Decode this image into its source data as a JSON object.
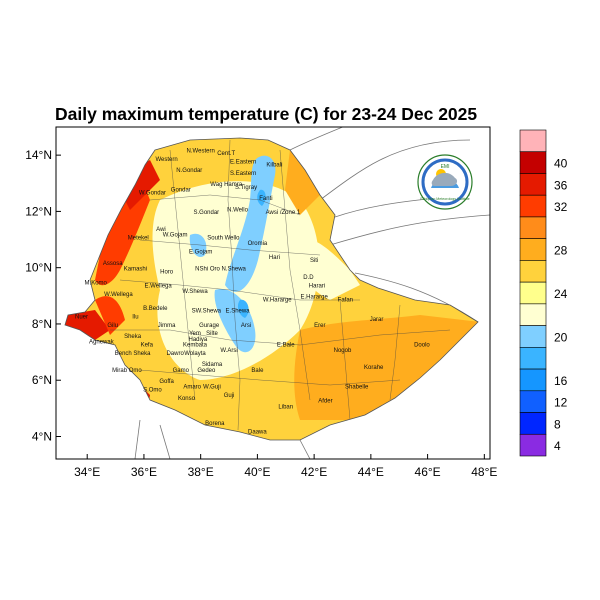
{
  "title": "Daily maximum temperature (C) for 23-24 Dec 2025",
  "map": {
    "x_ticks": [
      {
        "lon": 34,
        "label": "34°E"
      },
      {
        "lon": 36,
        "label": "36°E"
      },
      {
        "lon": 38,
        "label": "38°E"
      },
      {
        "lon": 40,
        "label": "40°E"
      },
      {
        "lon": 42,
        "label": "42°E"
      },
      {
        "lon": 44,
        "label": "44°E"
      },
      {
        "lon": 46,
        "label": "46°E"
      },
      {
        "lon": 48,
        "label": "48°E"
      }
    ],
    "y_ticks": [
      {
        "lat": 4,
        "label": "4°N"
      },
      {
        "lat": 6,
        "label": "6°N"
      },
      {
        "lat": 8,
        "label": "8°N"
      },
      {
        "lat": 10,
        "label": "10°N"
      },
      {
        "lat": 12,
        "label": "12°N"
      },
      {
        "lat": 14,
        "label": "14°N"
      }
    ],
    "lon_range": [
      32.9,
      48.2
    ],
    "lat_range": [
      3.2,
      15.0
    ],
    "region_labels": [
      {
        "name": "N.Western",
        "lon": 38.0,
        "lat": 14.1
      },
      {
        "name": "Cent.T",
        "lon": 38.9,
        "lat": 14.0
      },
      {
        "name": "Western",
        "lon": 36.8,
        "lat": 13.8
      },
      {
        "name": "E.Eastern",
        "lon": 39.5,
        "lat": 13.7
      },
      {
        "name": "Kilbali",
        "lon": 40.6,
        "lat": 13.6
      },
      {
        "name": "N.Gondar",
        "lon": 37.6,
        "lat": 13.4
      },
      {
        "name": "S.Eastern",
        "lon": 39.5,
        "lat": 13.3
      },
      {
        "name": "Wag Hamra",
        "lon": 38.9,
        "lat": 12.9
      },
      {
        "name": "S.Tigray",
        "lon": 39.6,
        "lat": 12.8
      },
      {
        "name": "W.Gondar",
        "lon": 36.3,
        "lat": 12.6
      },
      {
        "name": "Gondar",
        "lon": 37.3,
        "lat": 12.7
      },
      {
        "name": "Fanti",
        "lon": 40.3,
        "lat": 12.4
      },
      {
        "name": "S.Gondar",
        "lon": 38.2,
        "lat": 11.9
      },
      {
        "name": "N.Wello",
        "lon": 39.3,
        "lat": 12.0
      },
      {
        "name": "Awsi /Zone 1",
        "lon": 40.9,
        "lat": 11.9
      },
      {
        "name": "Metekel",
        "lon": 35.8,
        "lat": 11.0
      },
      {
        "name": "W.Gojam",
        "lon": 37.1,
        "lat": 11.1
      },
      {
        "name": "Awi",
        "lon": 36.6,
        "lat": 11.3
      },
      {
        "name": "South Wello",
        "lon": 38.8,
        "lat": 11.0
      },
      {
        "name": "E.Gojam",
        "lon": 38.0,
        "lat": 10.5
      },
      {
        "name": "Oromia",
        "lon": 40.0,
        "lat": 10.8
      },
      {
        "name": "Hari",
        "lon": 40.6,
        "lat": 10.3
      },
      {
        "name": "Siti",
        "lon": 42.0,
        "lat": 10.2
      },
      {
        "name": "Assosa",
        "lon": 34.9,
        "lat": 10.1
      },
      {
        "name": "Kamashi",
        "lon": 35.7,
        "lat": 9.9
      },
      {
        "name": "Horo",
        "lon": 36.8,
        "lat": 9.8
      },
      {
        "name": "NShi Oro N.Shewa",
        "lon": 38.7,
        "lat": 9.9
      },
      {
        "name": "D.D",
        "lon": 41.8,
        "lat": 9.6
      },
      {
        "name": "Harari",
        "lon": 42.1,
        "lat": 9.3
      },
      {
        "name": "M.Komo",
        "lon": 34.3,
        "lat": 9.4
      },
      {
        "name": "E.Wellega",
        "lon": 36.5,
        "lat": 9.3
      },
      {
        "name": "W.Shewa",
        "lon": 37.8,
        "lat": 9.1
      },
      {
        "name": "W.Wellega",
        "lon": 35.1,
        "lat": 9.0
      },
      {
        "name": "W.Hararge",
        "lon": 40.7,
        "lat": 8.8
      },
      {
        "name": "E.Hararge",
        "lon": 42.0,
        "lat": 8.9
      },
      {
        "name": "Fafan",
        "lon": 43.1,
        "lat": 8.8
      },
      {
        "name": "B.Bedele",
        "lon": 36.4,
        "lat": 8.5
      },
      {
        "name": "SW.Shewa",
        "lon": 38.2,
        "lat": 8.4
      },
      {
        "name": "E.Shewa",
        "lon": 39.3,
        "lat": 8.4
      },
      {
        "name": "Jarar",
        "lon": 44.2,
        "lat": 8.1
      },
      {
        "name": "Ilu",
        "lon": 35.7,
        "lat": 8.2
      },
      {
        "name": "Jimma",
        "lon": 36.8,
        "lat": 7.9
      },
      {
        "name": "Gurage",
        "lon": 38.3,
        "lat": 7.9
      },
      {
        "name": "Arsi",
        "lon": 39.6,
        "lat": 7.9
      },
      {
        "name": "Erer",
        "lon": 42.2,
        "lat": 7.9
      },
      {
        "name": "Gilu",
        "lon": 34.9,
        "lat": 7.9
      },
      {
        "name": "Yem",
        "lon": 37.8,
        "lat": 7.6
      },
      {
        "name": "Silte",
        "lon": 38.4,
        "lat": 7.6
      },
      {
        "name": "Sheka",
        "lon": 35.6,
        "lat": 7.5
      },
      {
        "name": "Hadiya",
        "lon": 37.9,
        "lat": 7.4
      },
      {
        "name": "Agnewak",
        "lon": 34.5,
        "lat": 7.3
      },
      {
        "name": "Kefa",
        "lon": 36.1,
        "lat": 7.2
      },
      {
        "name": "Kembata",
        "lon": 37.8,
        "lat": 7.2
      },
      {
        "name": "W.Arsi",
        "lon": 39.0,
        "lat": 7.0
      },
      {
        "name": "E.Bale",
        "lon": 41.0,
        "lat": 7.2
      },
      {
        "name": "Nogob",
        "lon": 43.0,
        "lat": 7.0
      },
      {
        "name": "Doolo",
        "lon": 45.8,
        "lat": 7.2
      },
      {
        "name": "Bench Sheka",
        "lon": 35.6,
        "lat": 6.9
      },
      {
        "name": "Dawro",
        "lon": 37.1,
        "lat": 6.9
      },
      {
        "name": "Wolayta",
        "lon": 37.8,
        "lat": 6.9
      },
      {
        "name": "Sidama",
        "lon": 38.4,
        "lat": 6.5
      },
      {
        "name": "Nuer",
        "lon": 33.8,
        "lat": 8.2
      },
      {
        "name": "Korahe",
        "lon": 44.1,
        "lat": 6.4
      },
      {
        "name": "Mirab Omo",
        "lon": 35.4,
        "lat": 6.3
      },
      {
        "name": "Gamo",
        "lon": 37.3,
        "lat": 6.3
      },
      {
        "name": "Gedeo",
        "lon": 38.2,
        "lat": 6.3
      },
      {
        "name": "Bale",
        "lon": 40.0,
        "lat": 6.3
      },
      {
        "name": "Goffa",
        "lon": 36.8,
        "lat": 5.9
      },
      {
        "name": "Shabelle",
        "lon": 43.5,
        "lat": 5.7
      },
      {
        "name": "S.Omo",
        "lon": 36.3,
        "lat": 5.6
      },
      {
        "name": "Amaro",
        "lon": 37.7,
        "lat": 5.7
      },
      {
        "name": "W.Guji",
        "lon": 38.4,
        "lat": 5.7
      },
      {
        "name": "Guji",
        "lon": 39.0,
        "lat": 5.4
      },
      {
        "name": "Konso",
        "lon": 37.5,
        "lat": 5.3
      },
      {
        "name": "Liban",
        "lon": 41.0,
        "lat": 5.0
      },
      {
        "name": "Afder",
        "lon": 42.4,
        "lat": 5.2
      },
      {
        "name": "Borena",
        "lon": 38.5,
        "lat": 4.4
      },
      {
        "name": "Daawa",
        "lon": 40.0,
        "lat": 4.1
      }
    ]
  },
  "legend": {
    "levels": [
      {
        "label": "",
        "color": "#ffb3b8"
      },
      {
        "label": "40",
        "color": "#c40000"
      },
      {
        "label": "36",
        "color": "#e51a00"
      },
      {
        "label": "32",
        "color": "#ff3c00"
      },
      {
        "label": "",
        "color": "#ff8c1a"
      },
      {
        "label": "28",
        "color": "#ffad1e"
      },
      {
        "label": "",
        "color": "#ffd23c"
      },
      {
        "label": "24",
        "color": "#ffff8c"
      },
      {
        "label": "",
        "color": "#ffffd2"
      },
      {
        "label": "20",
        "color": "#7fcfff"
      },
      {
        "label": "",
        "color": "#3ab4ff"
      },
      {
        "label": "16",
        "color": "#1596ff"
      },
      {
        "label": "12",
        "color": "#1060ff"
      },
      {
        "label": "8",
        "color": "#0026ff"
      },
      {
        "label": "4",
        "color": "#8a2be2"
      }
    ]
  },
  "logo": {
    "text_top": "EMI",
    "text_bottom": "Ethiopian Meteorology Institute"
  }
}
